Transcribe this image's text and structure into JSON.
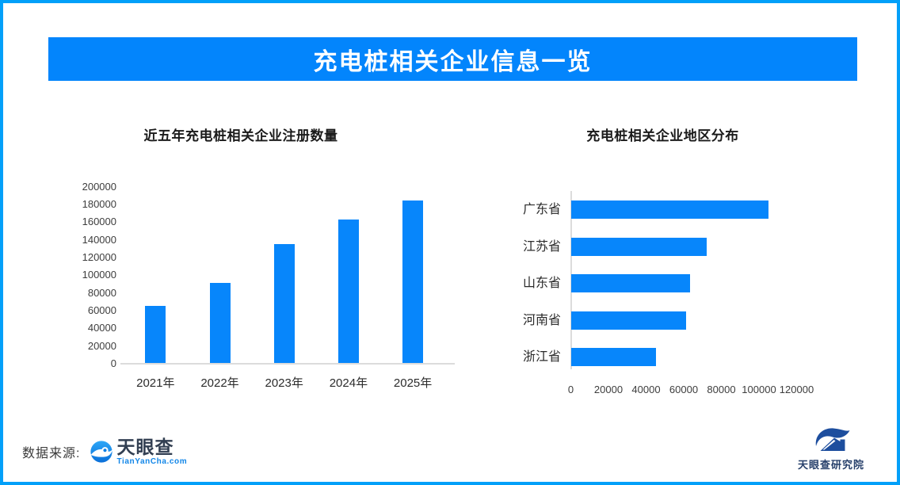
{
  "header": {
    "title": "充电桩相关企业信息一览"
  },
  "colors": {
    "frame_border": "#02A0F9",
    "banner_blue": "#0385FC",
    "bar_blue": "#0786FB",
    "axis_line_gray": "#DCDCDC",
    "tyc_name_navy": "#323F52",
    "tyc_domain_blue": "#1286E8",
    "research_logo_blue": "#1D4E9E"
  },
  "chart_data": [
    {
      "type": "bar",
      "orientation": "vertical",
      "title": "近五年充电桩相关企业注册数量",
      "categories": [
        "2021年",
        "2022年",
        "2023年",
        "2024年",
        "2025年"
      ],
      "values": [
        65000,
        91000,
        135000,
        162000,
        184000
      ],
      "xlabel": "",
      "ylabel": "",
      "ylim": [
        0,
        200000
      ],
      "ytick_step": 20000,
      "grid": false,
      "legend_position": "none",
      "bar_color": "#0786FB"
    },
    {
      "type": "bar",
      "orientation": "horizontal",
      "title": "充电桩相关企业地区分布",
      "categories": [
        "广东省",
        "江苏省",
        "山东省",
        "河南省",
        "浙江省"
      ],
      "values": [
        105000,
        72000,
        63000,
        61000,
        45000
      ],
      "xlabel": "",
      "ylabel": "",
      "xlim": [
        0,
        120000
      ],
      "xtick_step": 20000,
      "grid": false,
      "legend_position": "none",
      "bar_color": "#0786FB"
    }
  ],
  "footer": {
    "source_label": "数据来源:",
    "tianyancha": {
      "name": "天眼查",
      "domain": "TianYanCha.com",
      "icon": "tianyancha-eye-icon"
    },
    "research": {
      "name": "天眼查研究院",
      "icon": "research-institute-logo-icon"
    }
  }
}
